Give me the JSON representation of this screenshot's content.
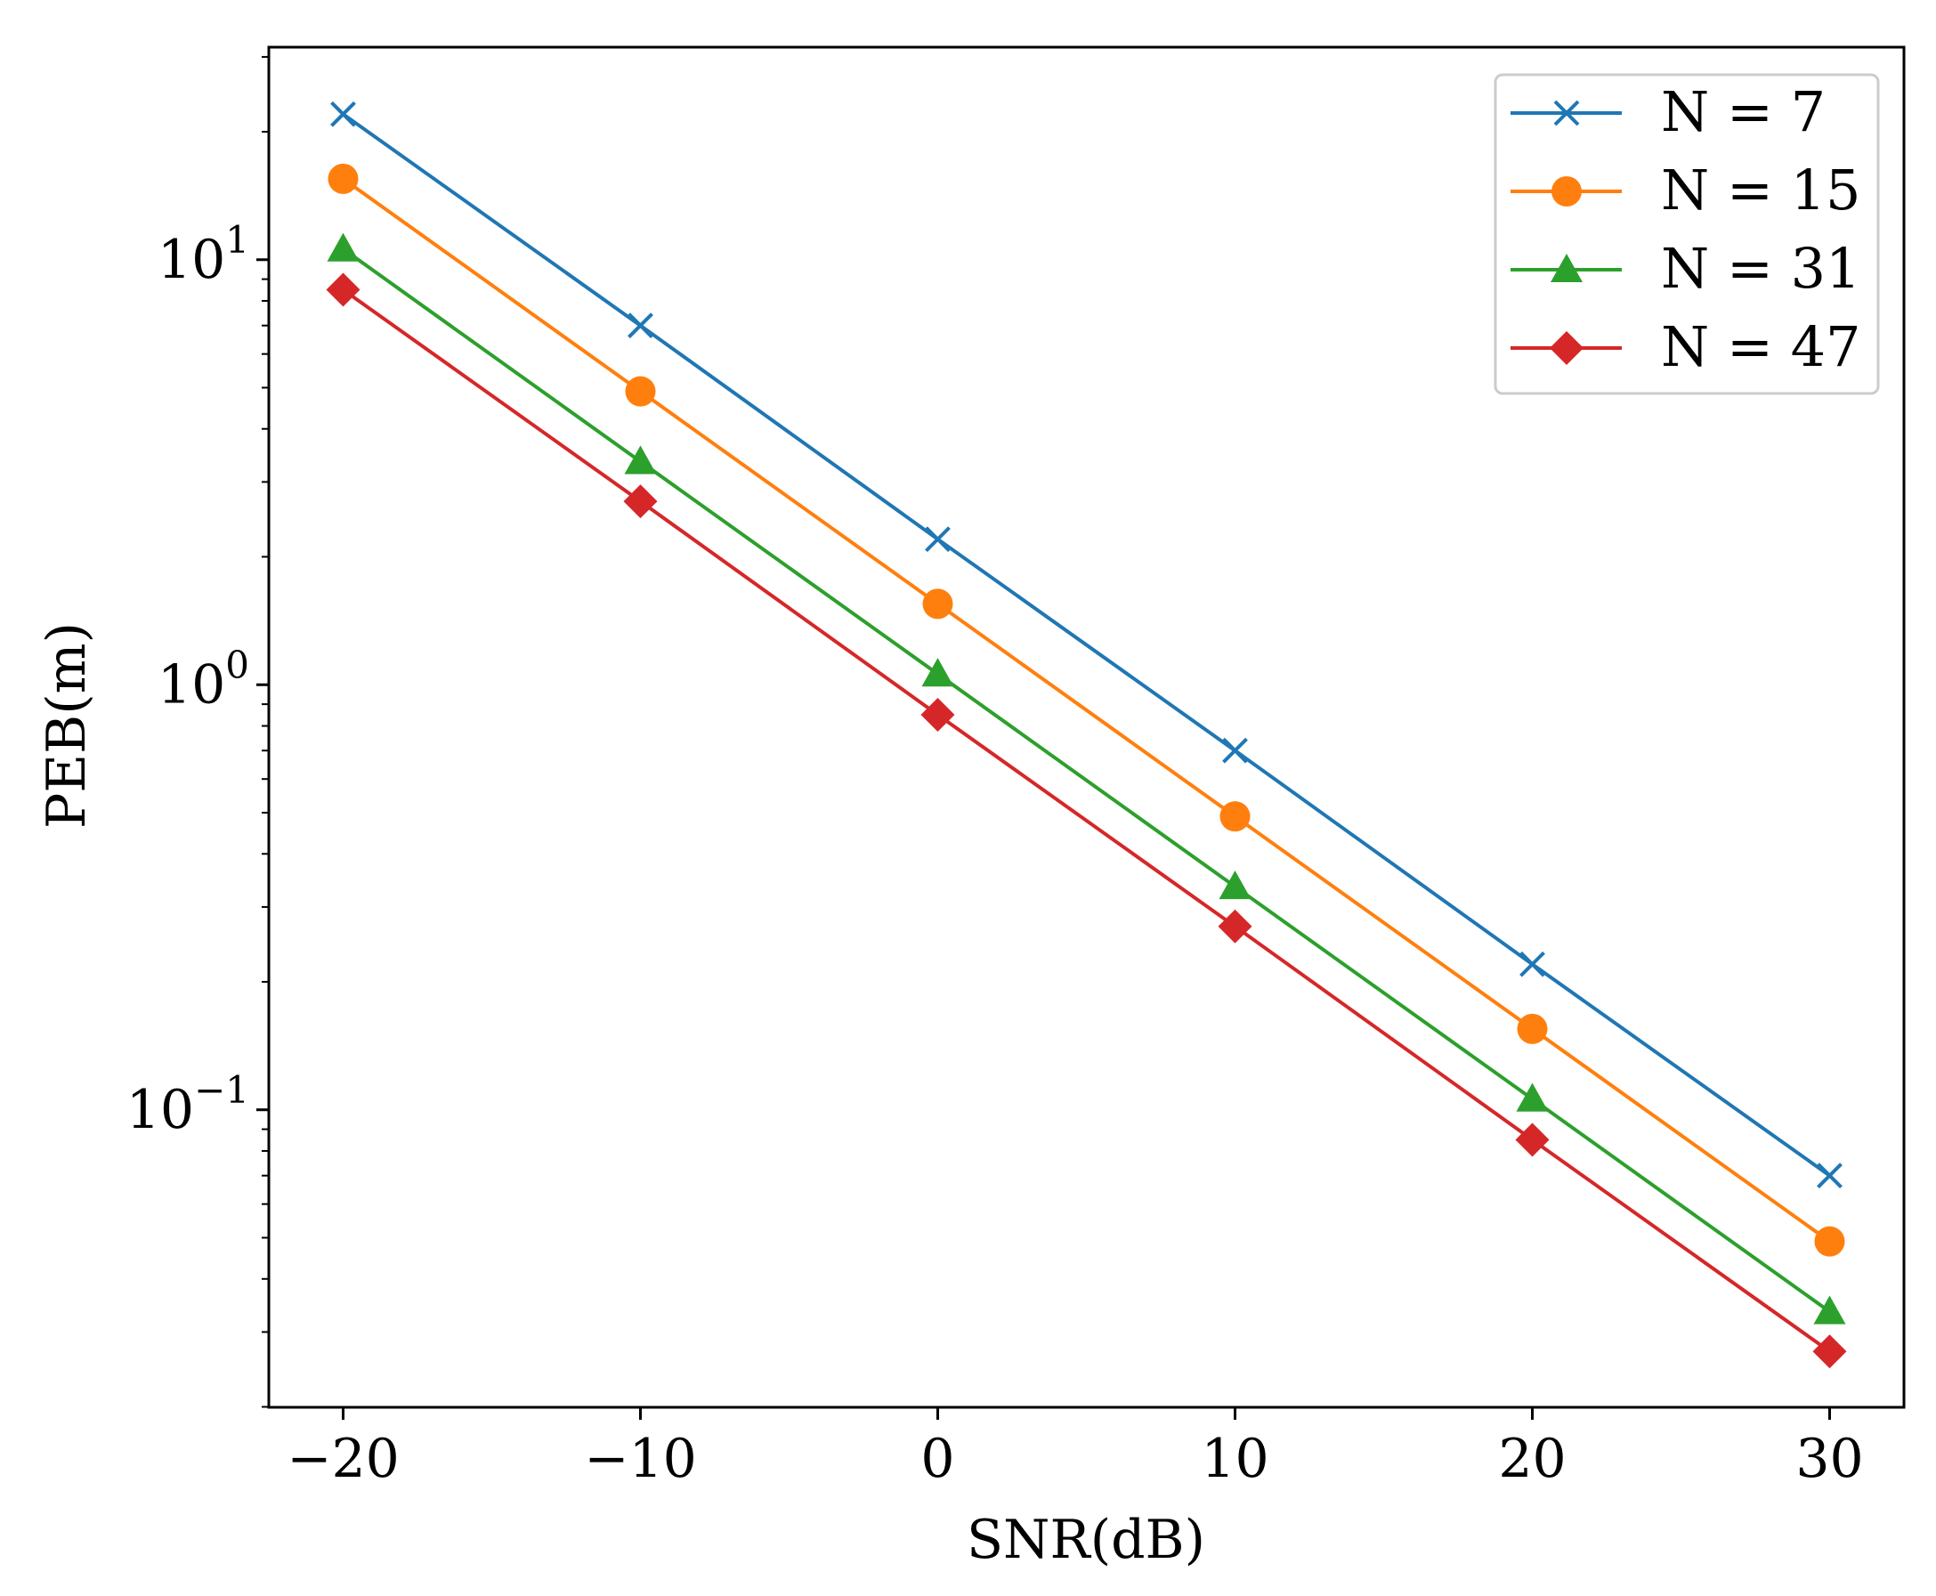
{
  "chart_data": {
    "type": "line",
    "title": "",
    "xlabel": "SNR(dB)",
    "ylabel": "PEB(m)",
    "x": [
      -20,
      -10,
      0,
      10,
      20,
      30
    ],
    "xlim": [
      -22.5,
      32.5
    ],
    "ylim_log10": [
      -1.7,
      1.5
    ],
    "yscale": "log",
    "grid": false,
    "legend_position": "top-right",
    "xticks": [
      {
        "value": -20,
        "label": "−20"
      },
      {
        "value": -10,
        "label": "−10"
      },
      {
        "value": 0,
        "label": "0"
      },
      {
        "value": 10,
        "label": "10"
      },
      {
        "value": 20,
        "label": "20"
      },
      {
        "value": 30,
        "label": "30"
      }
    ],
    "yticks": [
      {
        "value": 10,
        "base": "10",
        "exp": "1"
      },
      {
        "value": 1,
        "base": "10",
        "exp": "0"
      },
      {
        "value": 0.1,
        "base": "10",
        "exp": "−1"
      }
    ],
    "series": [
      {
        "name": "N = 7",
        "color": "#1f77b4",
        "marker": "x",
        "values": [
          22.0,
          7.0,
          2.2,
          0.7,
          0.22,
          0.07
        ]
      },
      {
        "name": "N = 15",
        "color": "#ff7f0e",
        "marker": "circle",
        "values": [
          15.5,
          4.9,
          1.55,
          0.49,
          0.155,
          0.049
        ]
      },
      {
        "name": "N = 31",
        "color": "#2ca02c",
        "marker": "triangle",
        "values": [
          10.6,
          3.35,
          1.06,
          0.335,
          0.106,
          0.0335
        ]
      },
      {
        "name": "N = 47",
        "color": "#d62728",
        "marker": "diamond",
        "values": [
          8.5,
          2.7,
          0.85,
          0.27,
          0.085,
          0.027
        ]
      }
    ]
  }
}
